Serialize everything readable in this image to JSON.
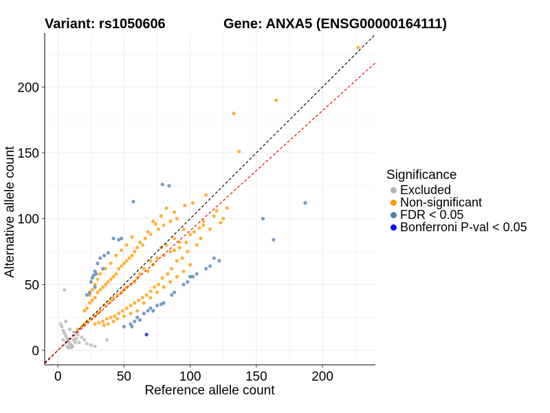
{
  "header": {
    "variant": "Variant: rs1050606",
    "gene": "Gene: ANXA5 (ENSG00000164111)"
  },
  "legend": {
    "title": "Significance",
    "items": [
      {
        "label": "Excluded",
        "color": "#b3b3b3"
      },
      {
        "label": "Non-significant",
        "color": "#ff9900"
      },
      {
        "label": "FDR < 0.05",
        "color": "#4a7cb0"
      },
      {
        "label": "Bonferroni P-val < 0.05",
        "color": "#0000ff"
      }
    ]
  },
  "chart_data": {
    "type": "scatter",
    "xlabel": "Reference allele count",
    "ylabel": "Alternative allele count",
    "xlim": [
      -10,
      240
    ],
    "ylim": [
      -11,
      241
    ],
    "xticks": [
      0,
      50,
      100,
      150,
      200
    ],
    "yticks": [
      0,
      50,
      100,
      150,
      200
    ],
    "grid": true,
    "legend_position": "right",
    "reference_lines": [
      {
        "type": "y=x",
        "color": "#000000",
        "style": "dashed"
      },
      {
        "type": "y=0.91x",
        "color": "#ee0000",
        "style": "dashed"
      }
    ],
    "series": [
      {
        "name": "Excluded",
        "color": "#b3b3b3",
        "points": [
          [
            5,
            46
          ],
          [
            2,
            20
          ],
          [
            3,
            18
          ],
          [
            4,
            15
          ],
          [
            5,
            13
          ],
          [
            6,
            11
          ],
          [
            7,
            9
          ],
          [
            8,
            7
          ],
          [
            6,
            6
          ],
          [
            9,
            5
          ],
          [
            10,
            4
          ],
          [
            11,
            3
          ],
          [
            8,
            2
          ],
          [
            12,
            8
          ],
          [
            14,
            9
          ],
          [
            16,
            6
          ],
          [
            18,
            10
          ],
          [
            20,
            8
          ],
          [
            22,
            5
          ],
          [
            25,
            4
          ],
          [
            28,
            3
          ],
          [
            6,
            22
          ],
          [
            9,
            16
          ],
          [
            4,
            8
          ],
          [
            12,
            14
          ],
          [
            15,
            12
          ],
          [
            37,
            8
          ],
          [
            10,
            2
          ],
          [
            7,
            3
          ],
          [
            13,
            6
          ]
        ]
      },
      {
        "name": "Non-significant",
        "color": "#ff9900",
        "points": [
          [
            227,
            230
          ],
          [
            165,
            190
          ],
          [
            133,
            180
          ],
          [
            137,
            151
          ],
          [
            120,
            106
          ],
          [
            125,
            100
          ],
          [
            110,
            98
          ],
          [
            100,
            88
          ],
          [
            95,
            92
          ],
          [
            92,
            82
          ],
          [
            88,
            85
          ],
          [
            85,
            75
          ],
          [
            82,
            80
          ],
          [
            80,
            72
          ],
          [
            78,
            78
          ],
          [
            75,
            70
          ],
          [
            72,
            65
          ],
          [
            70,
            68
          ],
          [
            68,
            60
          ],
          [
            65,
            62
          ],
          [
            62,
            58
          ],
          [
            60,
            55
          ],
          [
            58,
            52
          ],
          [
            55,
            50
          ],
          [
            52,
            48
          ],
          [
            50,
            46
          ],
          [
            48,
            44
          ],
          [
            45,
            42
          ],
          [
            42,
            40
          ],
          [
            40,
            38
          ],
          [
            38,
            36
          ],
          [
            35,
            34
          ],
          [
            32,
            30
          ],
          [
            30,
            28
          ],
          [
            28,
            26
          ],
          [
            25,
            24
          ],
          [
            22,
            22
          ],
          [
            20,
            20
          ],
          [
            18,
            18
          ],
          [
            15,
            16
          ],
          [
            102,
            112
          ],
          [
            90,
            100
          ],
          [
            85,
            98
          ],
          [
            80,
            95
          ],
          [
            76,
            92
          ],
          [
            72,
            98
          ],
          [
            70,
            88
          ],
          [
            68,
            90
          ],
          [
            66,
            85
          ],
          [
            64,
            80
          ],
          [
            62,
            82
          ],
          [
            60,
            78
          ],
          [
            58,
            75
          ],
          [
            56,
            72
          ],
          [
            54,
            70
          ],
          [
            52,
            68
          ],
          [
            50,
            66
          ],
          [
            48,
            64
          ],
          [
            46,
            62
          ],
          [
            44,
            58
          ],
          [
            42,
            56
          ],
          [
            40,
            54
          ],
          [
            38,
            52
          ],
          [
            36,
            50
          ],
          [
            34,
            48
          ],
          [
            32,
            46
          ],
          [
            30,
            44
          ],
          [
            28,
            40
          ],
          [
            26,
            38
          ],
          [
            24,
            36
          ],
          [
            22,
            32
          ],
          [
            20,
            30
          ],
          [
            105,
            80
          ],
          [
            98,
            75
          ],
          [
            94,
            70
          ],
          [
            90,
            68
          ],
          [
            86,
            62
          ],
          [
            83,
            58
          ],
          [
            79,
            55
          ],
          [
            76,
            50
          ],
          [
            73,
            48
          ],
          [
            70,
            45
          ],
          [
            67,
            42
          ],
          [
            64,
            40
          ],
          [
            61,
            38
          ],
          [
            58,
            36
          ],
          [
            55,
            34
          ],
          [
            52,
            32
          ],
          [
            49,
            30
          ],
          [
            46,
            28
          ],
          [
            43,
            26
          ],
          [
            40,
            25
          ],
          [
            37,
            24
          ],
          [
            34,
            22
          ],
          [
            31,
            21
          ],
          [
            28,
            20
          ],
          [
            110,
            95
          ],
          [
            115,
            92
          ],
          [
            108,
            85
          ],
          [
            96,
            110
          ],
          [
            88,
            105
          ],
          [
            82,
            108
          ],
          [
            78,
            102
          ],
          [
            74,
            96
          ],
          [
            56,
            86
          ],
          [
            52,
            80
          ],
          [
            48,
            76
          ],
          [
            44,
            72
          ],
          [
            40,
            66
          ],
          [
            36,
            62
          ],
          [
            32,
            58
          ],
          [
            30,
            54
          ],
          [
            28,
            50
          ],
          [
            26,
            46
          ],
          [
            24,
            42
          ],
          [
            60,
            30
          ],
          [
            55,
            28
          ],
          [
            50,
            26
          ],
          [
            45,
            24
          ],
          [
            42,
            22
          ],
          [
            38,
            20
          ],
          [
            35,
            19
          ],
          [
            70,
            40
          ],
          [
            75,
            44
          ],
          [
            80,
            48
          ],
          [
            85,
            52
          ],
          [
            90,
            56
          ],
          [
            95,
            60
          ],
          [
            100,
            65
          ],
          [
            65,
            36
          ],
          [
            88,
            76
          ],
          [
            92,
            78
          ],
          [
            97,
            82
          ],
          [
            103,
            90
          ],
          [
            107,
            93
          ],
          [
            118,
            102
          ],
          [
            123,
            97
          ],
          [
            128,
            108
          ],
          [
            112,
            118
          ]
        ]
      },
      {
        "name": "FDR < 0.05",
        "color": "#4a7cb0",
        "points": [
          [
            187,
            112
          ],
          [
            155,
            100
          ],
          [
            163,
            84
          ],
          [
            84,
            125
          ],
          [
            79,
            126
          ],
          [
            57,
            113
          ],
          [
            42,
            85
          ],
          [
            46,
            84
          ],
          [
            48,
            85
          ],
          [
            35,
            72
          ],
          [
            38,
            74
          ],
          [
            32,
            70
          ],
          [
            30,
            66
          ],
          [
            28,
            60
          ],
          [
            34,
            62
          ],
          [
            27,
            57
          ],
          [
            29,
            58
          ],
          [
            25,
            52
          ],
          [
            26,
            55
          ],
          [
            28,
            48
          ],
          [
            24,
            44
          ],
          [
            22,
            42
          ],
          [
            60,
            25
          ],
          [
            62,
            23
          ],
          [
            58,
            22
          ],
          [
            55,
            20
          ],
          [
            50,
            18
          ],
          [
            56,
            18
          ],
          [
            65,
            28
          ],
          [
            70,
            32
          ],
          [
            72,
            30
          ],
          [
            68,
            30
          ],
          [
            75,
            34
          ],
          [
            78,
            35
          ],
          [
            80,
            36
          ],
          [
            86,
            42
          ],
          [
            95,
            50
          ],
          [
            98,
            52
          ],
          [
            102,
            56
          ],
          [
            118,
            70
          ],
          [
            122,
            68
          ],
          [
            115,
            64
          ],
          [
            112,
            62
          ],
          [
            105,
            58
          ],
          [
            100,
            56
          ],
          [
            88,
            44
          ]
        ]
      },
      {
        "name": "Bonferroni P-val < 0.05",
        "color": "#0000ff",
        "points": [
          [
            67,
            12
          ]
        ]
      }
    ]
  }
}
